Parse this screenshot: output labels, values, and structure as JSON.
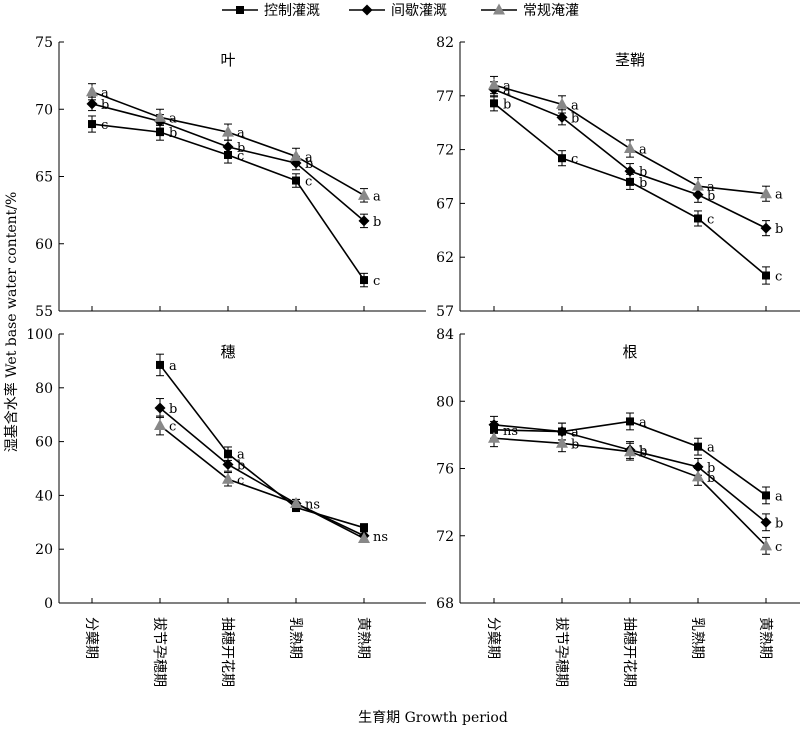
{
  "chart_data": {
    "type": "line",
    "legend": [
      "控制灌溉",
      "间歇灌溉",
      "常规淹灌"
    ],
    "legend_position": "top",
    "series_colors": [
      "#000000",
      "#000000",
      "#888888"
    ],
    "series_markers": [
      "square",
      "diamond",
      "triangle"
    ],
    "categories": [
      "分蘖期",
      "拔节孕穗期",
      "抽穗开花期",
      "乳熟期",
      "黄熟期"
    ],
    "xlabel": "生育期 Growth period",
    "ylabel": "湿基含水率 Wet base water content/%",
    "panels": [
      {
        "title": "叶",
        "ylim": [
          55,
          75
        ],
        "yticks": [
          55,
          60,
          65,
          70,
          75
        ],
        "series": [
          {
            "values": [
              68.9,
              68.3,
              66.6,
              64.7,
              57.3
            ],
            "errors": [
              0.6,
              0.6,
              0.6,
              0.5,
              0.5
            ],
            "labels": [
              "c",
              "b",
              "c",
              "c",
              "c"
            ]
          },
          {
            "values": [
              70.4,
              69.1,
              67.2,
              66.0,
              61.7
            ],
            "errors": [
              0.5,
              0.5,
              0.5,
              0.5,
              0.5
            ],
            "labels": [
              "b",
              "",
              "b",
              "b",
              "b"
            ]
          },
          {
            "values": [
              71.3,
              69.4,
              68.3,
              66.5,
              63.6
            ],
            "errors": [
              0.6,
              0.6,
              0.6,
              0.6,
              0.5
            ],
            "labels": [
              "a",
              "a",
              "a",
              "a",
              "a"
            ]
          }
        ]
      },
      {
        "title": "茎鞘",
        "ylim": [
          57,
          82
        ],
        "yticks": [
          57,
          62,
          67,
          72,
          77,
          82
        ],
        "series": [
          {
            "values": [
              76.3,
              71.2,
              69.0,
              65.6,
              60.3
            ],
            "errors": [
              0.7,
              0.7,
              0.7,
              0.7,
              0.8
            ],
            "labels": [
              "b",
              "c",
              "b",
              "c",
              "c"
            ]
          },
          {
            "values": [
              77.6,
              75.0,
              70.0,
              67.8,
              64.7
            ],
            "errors": [
              0.7,
              0.7,
              0.7,
              0.7,
              0.7
            ],
            "labels": [
              "a",
              "b",
              "b",
              "b",
              "b"
            ]
          },
          {
            "values": [
              78.0,
              76.2,
              72.1,
              68.6,
              67.9
            ],
            "errors": [
              0.8,
              0.8,
              0.8,
              0.8,
              0.7
            ],
            "labels": [
              "a",
              "a",
              "a",
              "a",
              "a"
            ]
          }
        ]
      },
      {
        "title": "穗",
        "ylim": [
          0,
          100
        ],
        "yticks": [
          0,
          20,
          40,
          60,
          80,
          100
        ],
        "start_index": 1,
        "series": [
          {
            "values": [
              null,
              88.5,
              55.5,
              35.5,
              28.0
            ],
            "errors": [
              0,
              4.0,
              2.5,
              1.5,
              1.5
            ],
            "labels": [
              "",
              "a",
              "a",
              "",
              ""
            ]
          },
          {
            "values": [
              null,
              72.5,
              51.5,
              37.0,
              25.0
            ],
            "errors": [
              0,
              3.5,
              2.5,
              1.5,
              1.5
            ],
            "labels": [
              "",
              "b",
              "b",
              "ns",
              "ns"
            ]
          },
          {
            "values": [
              null,
              66.0,
              46.0,
              37.0,
              24.0
            ],
            "errors": [
              0,
              3.5,
              2.5,
              1.5,
              1.5
            ],
            "labels": [
              "",
              "c",
              "c",
              "",
              ""
            ]
          }
        ]
      },
      {
        "title": "根",
        "ylim": [
          68,
          84
        ],
        "yticks": [
          68,
          72,
          76,
          80,
          84
        ],
        "series": [
          {
            "values": [
              78.3,
              78.2,
              78.8,
              77.3,
              74.4
            ],
            "errors": [
              0.5,
              0.5,
              0.5,
              0.5,
              0.5
            ],
            "labels": [
              "ns",
              "a",
              "a",
              "a",
              "a"
            ]
          },
          {
            "values": [
              78.6,
              78.2,
              77.1,
              76.1,
              72.8
            ],
            "errors": [
              0.5,
              0.5,
              0.5,
              0.5,
              0.5
            ],
            "labels": [
              "",
              "a",
              "b",
              "b",
              "b"
            ]
          },
          {
            "values": [
              77.8,
              77.5,
              77.0,
              75.5,
              71.4
            ],
            "errors": [
              0.5,
              0.5,
              0.5,
              0.5,
              0.5
            ],
            "labels": [
              "",
              "b",
              "b",
              "b",
              "c"
            ]
          }
        ]
      }
    ]
  }
}
